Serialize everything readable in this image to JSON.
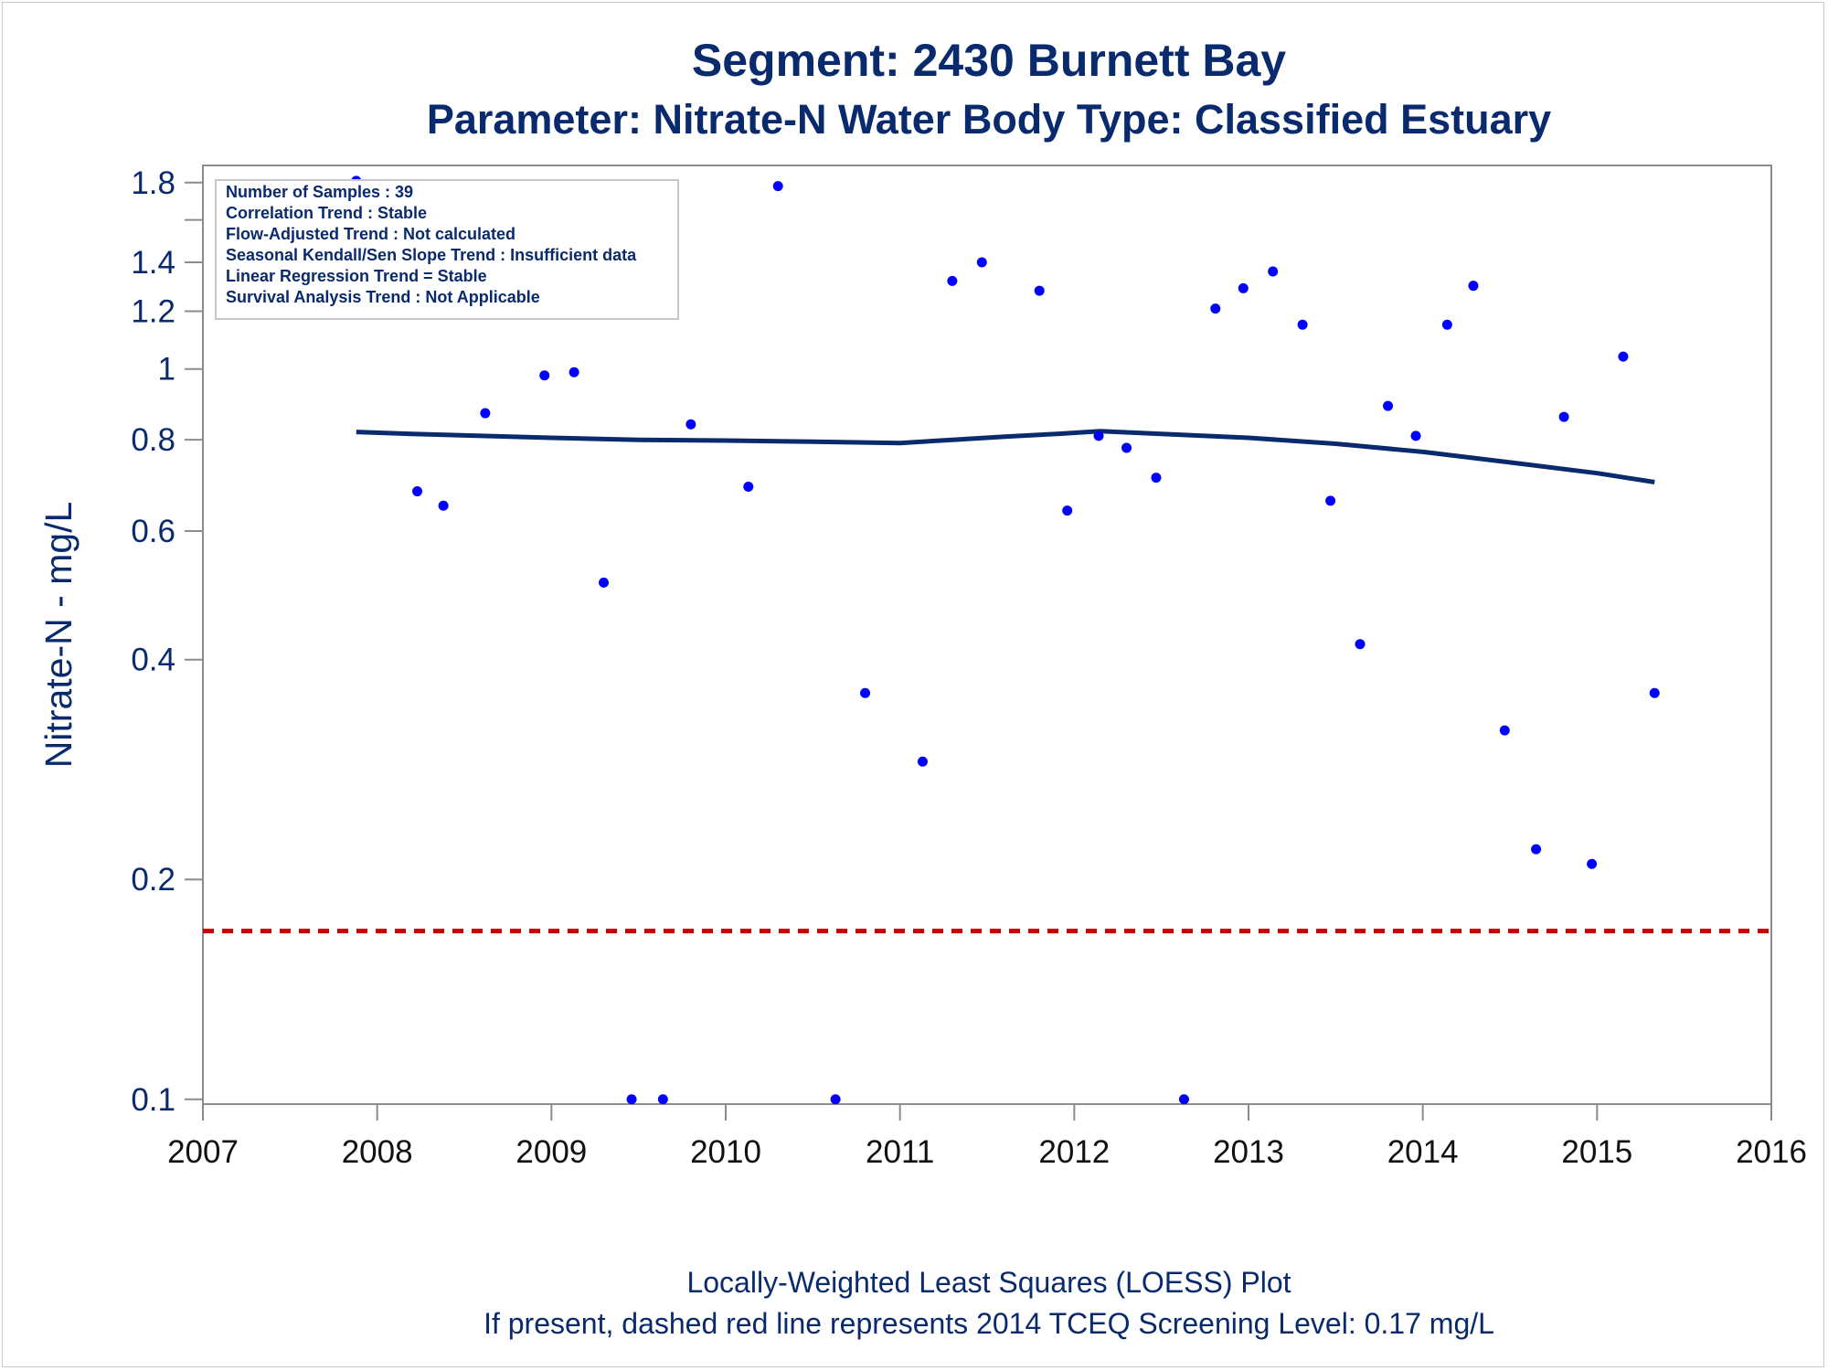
{
  "chart_data": {
    "type": "scatter",
    "title": "Segment: 2430  Burnett Bay",
    "subtitle": "Parameter: Nitrate-N   Water Body Type: Classified Estuary",
    "ylabel": "Nitrate-N - mg/L",
    "xlabel": "",
    "footnotes": [
      "Locally-Weighted Least Squares (LOESS) Plot",
      "If present, dashed red line represents 2014 TCEQ Screening Level: 0.17 mg/L"
    ],
    "xlim": [
      2007,
      2016
    ],
    "ylim": [
      0.0985,
      1.9
    ],
    "yscale": "log",
    "x_ticks": [
      2007,
      2008,
      2009,
      2010,
      2011,
      2012,
      2013,
      2014,
      2015,
      2016
    ],
    "x_tick_labels": [
      "2007",
      "2008",
      "2009",
      "2010",
      "2011",
      "2012",
      "2013",
      "2014",
      "2015",
      "2016"
    ],
    "y_ticks": [
      0.1,
      0.2,
      0.4,
      0.6,
      0.8,
      1,
      1.2,
      1.4,
      1.6,
      1.8
    ],
    "y_tick_labels": [
      "0.1",
      "0.2",
      "0.4",
      "0.6",
      "0.8",
      "1",
      "1.2",
      "1.4",
      "",
      "1.8"
    ],
    "grid": false,
    "stats_box": {
      "lines": [
        "Number of Samples : 39",
        "Correlation Trend : Stable",
        "Flow-Adjusted Trend : Not calculated",
        "Seasonal Kendall/Sen Slope Trend : Insufficient data",
        "Linear Regression Trend = Stable",
        "Survival Analysis Trend : Not Applicable"
      ],
      "placement": "top-left"
    },
    "screening_level": {
      "value": 0.17,
      "color": "#cc0000",
      "style": "dashed"
    },
    "series": [
      {
        "kind": "points",
        "color": "#0000ff",
        "points": [
          [
            2007.88,
            1.81
          ],
          [
            2008.23,
            0.68
          ],
          [
            2008.38,
            0.65
          ],
          [
            2008.62,
            0.87
          ],
          [
            2008.96,
            0.98
          ],
          [
            2009.13,
            0.99
          ],
          [
            2009.3,
            0.51
          ],
          [
            2009.46,
            0.1
          ],
          [
            2009.64,
            0.1
          ],
          [
            2009.8,
            0.84
          ],
          [
            2010.13,
            0.69
          ],
          [
            2010.3,
            1.78
          ],
          [
            2010.63,
            0.1
          ],
          [
            2010.8,
            0.36
          ],
          [
            2011.13,
            0.29
          ],
          [
            2011.3,
            1.32
          ],
          [
            2011.47,
            1.4
          ],
          [
            2011.8,
            1.28
          ],
          [
            2011.96,
            0.64
          ],
          [
            2012.14,
            0.81
          ],
          [
            2012.3,
            0.78
          ],
          [
            2012.47,
            0.71
          ],
          [
            2012.63,
            0.1
          ],
          [
            2012.81,
            1.21
          ],
          [
            2012.97,
            1.29
          ],
          [
            2013.14,
            1.36
          ],
          [
            2013.31,
            1.15
          ],
          [
            2013.47,
            0.66
          ],
          [
            2013.64,
            0.42
          ],
          [
            2013.8,
            0.89
          ],
          [
            2013.96,
            0.81
          ],
          [
            2014.14,
            1.15
          ],
          [
            2014.29,
            1.3
          ],
          [
            2014.47,
            0.32
          ],
          [
            2014.65,
            0.22
          ],
          [
            2014.81,
            0.86
          ],
          [
            2014.97,
            0.21
          ],
          [
            2015.15,
            1.04
          ],
          [
            2015.33,
            0.36
          ]
        ]
      },
      {
        "kind": "line",
        "label": "LOESS",
        "color": "#0a2a6e",
        "points": [
          [
            2007.88,
            0.82
          ],
          [
            2008.2,
            0.815
          ],
          [
            2008.6,
            0.81
          ],
          [
            2009.0,
            0.805
          ],
          [
            2009.5,
            0.8
          ],
          [
            2010.0,
            0.798
          ],
          [
            2010.5,
            0.795
          ],
          [
            2011.0,
            0.792
          ],
          [
            2011.3,
            0.8
          ],
          [
            2011.6,
            0.808
          ],
          [
            2011.9,
            0.815
          ],
          [
            2012.15,
            0.822
          ],
          [
            2012.5,
            0.815
          ],
          [
            2013.0,
            0.805
          ],
          [
            2013.5,
            0.79
          ],
          [
            2014.0,
            0.77
          ],
          [
            2014.5,
            0.745
          ],
          [
            2015.0,
            0.72
          ],
          [
            2015.33,
            0.7
          ]
        ]
      }
    ]
  }
}
